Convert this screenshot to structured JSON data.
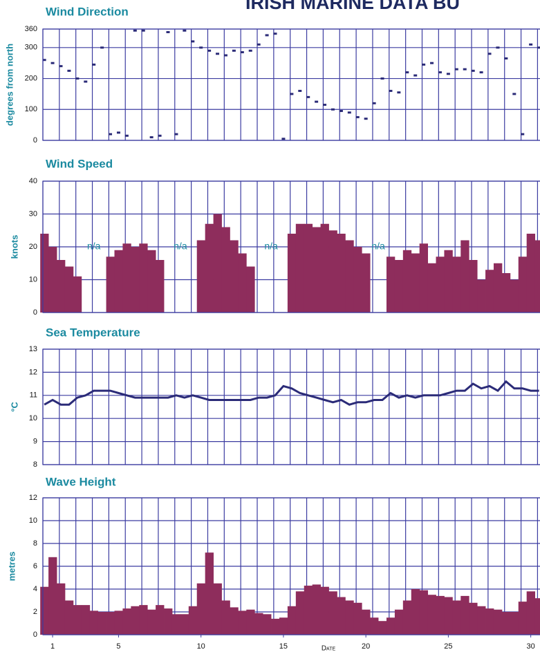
{
  "title": "IRISH MARINE DATA BU",
  "chart_data": [
    {
      "type": "scatter",
      "title": "Wind Direction",
      "ylabel": "degrees from north",
      "color": "#2b2b78",
      "x": [
        0.5,
        1,
        1.5,
        2,
        2.5,
        3,
        3.5,
        4,
        4.5,
        5,
        5.5,
        6,
        6.5,
        7,
        7.5,
        8,
        8.5,
        9,
        9.5,
        10,
        10.5,
        11,
        11.5,
        12,
        12.5,
        13,
        13.5,
        14,
        14.5,
        15,
        15.5,
        16,
        16.5,
        17,
        17.5,
        18,
        18.5,
        19,
        19.5,
        20,
        20.5,
        21,
        21.5,
        22,
        22.5,
        23,
        23.5,
        24,
        24.5,
        25,
        25.5,
        26,
        26.5,
        27,
        27.5,
        28,
        28.5,
        29,
        29.5,
        30,
        30.5
      ],
      "values": [
        260,
        250,
        240,
        225,
        200,
        190,
        245,
        300,
        20,
        25,
        15,
        355,
        355,
        10,
        15,
        350,
        20,
        355,
        320,
        300,
        290,
        280,
        275,
        290,
        285,
        290,
        310,
        340,
        345,
        5,
        150,
        160,
        140,
        125,
        115,
        100,
        95,
        90,
        75,
        70,
        120,
        200,
        160,
        155,
        220,
        210,
        245,
        250,
        220,
        215,
        230,
        230,
        225,
        220,
        280,
        300,
        265,
        150,
        20,
        310,
        300
      ],
      "xlim": [
        0.41,
        30.56
      ],
      "ylim": [
        0,
        360
      ],
      "yticks": [
        0,
        100,
        200,
        300,
        360
      ]
    },
    {
      "type": "area",
      "title": "Wind Speed",
      "ylabel": "knots",
      "color": "#8e2d5c",
      "x": [
        0.5,
        1,
        1.5,
        2,
        2.5,
        3,
        3.5,
        4,
        4.5,
        5,
        5.5,
        6,
        6.5,
        7,
        7.5,
        8,
        8.5,
        9,
        9.5,
        10,
        10.5,
        11,
        11.5,
        12,
        12.5,
        13,
        13.5,
        14,
        14.5,
        15,
        15.5,
        16,
        16.5,
        17,
        17.5,
        18,
        18.5,
        19,
        19.5,
        20,
        20.5,
        21,
        21.5,
        22,
        22.5,
        23,
        23.5,
        24,
        24.5,
        25,
        25.5,
        26,
        26.5,
        27,
        27.5,
        28,
        28.5,
        29,
        29.5,
        30,
        30.5
      ],
      "values": [
        24,
        20,
        16,
        14,
        11,
        null,
        null,
        null,
        17,
        19,
        21,
        20,
        21,
        19,
        16,
        null,
        null,
        null,
        null,
        22,
        27,
        30,
        26,
        22,
        18,
        14,
        null,
        null,
        null,
        null,
        24,
        27,
        27,
        26,
        27,
        25,
        24,
        22,
        20,
        18,
        null,
        null,
        17,
        16,
        19,
        18,
        21,
        15,
        17,
        19,
        17,
        22,
        16,
        10,
        13,
        15,
        12,
        10,
        17,
        24,
        22
      ],
      "annotations": [
        "n/a",
        "n/a",
        "n/a",
        "n/a"
      ],
      "xlim": [
        0.41,
        30.56
      ],
      "ylim": [
        0,
        40
      ],
      "yticks": [
        0,
        10,
        20,
        30,
        40
      ]
    },
    {
      "type": "line",
      "title": "Sea Temperature",
      "ylabel": "°C",
      "color": "#2b2b78",
      "x": [
        0.5,
        1,
        1.5,
        2,
        2.5,
        3,
        3.5,
        4,
        4.5,
        5,
        5.5,
        6,
        6.5,
        7,
        7.5,
        8,
        8.5,
        9,
        9.5,
        10,
        10.5,
        11,
        11.5,
        12,
        12.5,
        13,
        13.5,
        14,
        14.5,
        15,
        15.5,
        16,
        16.5,
        17,
        17.5,
        18,
        18.5,
        19,
        19.5,
        20,
        20.5,
        21,
        21.5,
        22,
        22.5,
        23,
        23.5,
        24,
        24.5,
        25,
        25.5,
        26,
        26.5,
        27,
        27.5,
        28,
        28.5,
        29,
        29.5,
        30,
        30.5
      ],
      "values": [
        10.6,
        10.8,
        10.6,
        10.6,
        10.9,
        11.0,
        11.2,
        11.2,
        11.2,
        11.1,
        11.0,
        10.9,
        10.9,
        10.9,
        10.9,
        10.9,
        11.0,
        10.9,
        11.0,
        10.9,
        10.8,
        10.8,
        10.8,
        10.8,
        10.8,
        10.8,
        10.9,
        10.9,
        11.0,
        11.4,
        11.3,
        11.1,
        11.0,
        10.9,
        10.8,
        10.7,
        10.8,
        10.6,
        10.7,
        10.7,
        10.8,
        10.8,
        11.1,
        10.9,
        11.0,
        10.9,
        11.0,
        11.0,
        11.0,
        11.1,
        11.2,
        11.2,
        11.5,
        11.3,
        11.4,
        11.2,
        11.6,
        11.3,
        11.3,
        11.2,
        11.2
      ],
      "xlim": [
        0.41,
        30.56
      ],
      "ylim": [
        8,
        13
      ],
      "yticks": [
        8,
        9,
        10,
        11,
        12,
        13
      ]
    },
    {
      "type": "area",
      "title": "Wave Height",
      "ylabel": "metres",
      "xlabel": "Date",
      "color": "#8e2d5c",
      "x": [
        0.5,
        1,
        1.5,
        2,
        2.5,
        3,
        3.5,
        4,
        4.5,
        5,
        5.5,
        6,
        6.5,
        7,
        7.5,
        8,
        8.5,
        9,
        9.5,
        10,
        10.5,
        11,
        11.5,
        12,
        12.5,
        13,
        13.5,
        14,
        14.5,
        15,
        15.5,
        16,
        16.5,
        17,
        17.5,
        18,
        18.5,
        19,
        19.5,
        20,
        20.5,
        21,
        21.5,
        22,
        22.5,
        23,
        23.5,
        24,
        24.5,
        25,
        25.5,
        26,
        26.5,
        27,
        27.5,
        28,
        28.5,
        29,
        29.5,
        30,
        30.5
      ],
      "values": [
        4.2,
        6.8,
        4.5,
        3.0,
        2.6,
        2.6,
        2.1,
        2.0,
        2.0,
        2.1,
        2.3,
        2.5,
        2.6,
        2.2,
        2.6,
        2.3,
        1.8,
        1.8,
        2.5,
        4.5,
        7.2,
        4.5,
        3.0,
        2.4,
        2.1,
        2.2,
        1.9,
        1.8,
        1.4,
        1.5,
        2.5,
        3.8,
        4.3,
        4.4,
        4.2,
        3.8,
        3.3,
        3.0,
        2.8,
        2.2,
        1.5,
        1.2,
        1.5,
        2.2,
        3.0,
        4.0,
        3.9,
        3.5,
        3.4,
        3.3,
        3.0,
        3.4,
        2.8,
        2.5,
        2.3,
        2.2,
        2.0,
        2.0,
        2.9,
        3.8,
        3.2
      ],
      "xlim": [
        0.41,
        30.56
      ],
      "ylim": [
        0,
        12
      ],
      "yticks": [
        0,
        2,
        4,
        6,
        8,
        10,
        12
      ],
      "xticks": [
        1,
        5,
        10,
        15,
        20,
        25,
        30
      ]
    }
  ]
}
